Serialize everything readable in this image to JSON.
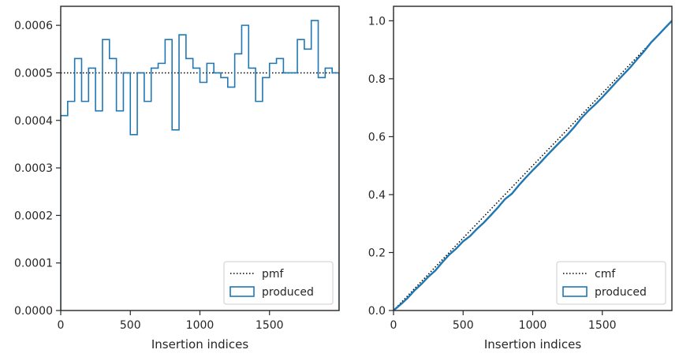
{
  "chart_data": [
    {
      "type": "histogram-step",
      "xlabel": "Insertion indices",
      "ylabel": "",
      "xlim": [
        0,
        2000
      ],
      "ylim": [
        0,
        0.00064
      ],
      "x_ticks": [
        0,
        500,
        1000,
        1500
      ],
      "x_tick_labels": [
        "0",
        "500",
        "1000",
        "1500"
      ],
      "y_ticks": [
        0,
        0.0001,
        0.0002,
        0.0003,
        0.0004,
        0.0005,
        0.0006
      ],
      "y_tick_labels": [
        "0.0000",
        "0.0001",
        "0.0002",
        "0.0003",
        "0.0004",
        "0.0005",
        "0.0006"
      ],
      "grid": false,
      "legend_position": "lower right",
      "legend_entries": [
        "pmf",
        "produced"
      ],
      "bin_edges": [
        0,
        50,
        100,
        150,
        200,
        250,
        300,
        350,
        400,
        450,
        500,
        550,
        600,
        650,
        700,
        750,
        800,
        850,
        900,
        950,
        1000,
        1050,
        1100,
        1150,
        1200,
        1250,
        1300,
        1350,
        1400,
        1450,
        1500,
        1550,
        1600,
        1650,
        1700,
        1750,
        1800,
        1850,
        1900,
        1950,
        2000
      ],
      "series": [
        {
          "name": "pmf",
          "style": "dotted",
          "color": "#000000",
          "x": [
            0,
            2000
          ],
          "values": [
            0.0005,
            0.0005
          ]
        },
        {
          "name": "produced",
          "style": "step",
          "color": "#1f77b4",
          "values": [
            0.00041,
            0.00044,
            0.00053,
            0.00044,
            0.00051,
            0.00042,
            0.00057,
            0.00053,
            0.00042,
            0.0005,
            0.00037,
            0.0005,
            0.00044,
            0.00051,
            0.00052,
            0.00057,
            0.00038,
            0.00058,
            0.00053,
            0.00051,
            0.00048,
            0.00052,
            0.0005,
            0.00049,
            0.00047,
            0.00054,
            0.0006,
            0.00051,
            0.00044,
            0.00049,
            0.00052,
            0.00053,
            0.0005,
            0.0005,
            0.00057,
            0.00055,
            0.00061,
            0.00049,
            0.00051,
            0.0005
          ]
        }
      ]
    },
    {
      "type": "line",
      "xlabel": "Insertion indices",
      "ylabel": "",
      "xlim": [
        0,
        2000
      ],
      "ylim": [
        0,
        1.05
      ],
      "x_ticks": [
        0,
        500,
        1000,
        1500
      ],
      "x_tick_labels": [
        "0",
        "500",
        "1000",
        "1500"
      ],
      "y_ticks": [
        0,
        0.2,
        0.4,
        0.6,
        0.8,
        1.0
      ],
      "y_tick_labels": [
        "0.0",
        "0.2",
        "0.4",
        "0.6",
        "0.8",
        "1.0"
      ],
      "grid": false,
      "legend_position": "lower right",
      "legend_entries": [
        "cmf",
        "produced"
      ],
      "series": [
        {
          "name": "cmf",
          "style": "dotted",
          "color": "#000000",
          "x": [
            0,
            2000
          ],
          "values": [
            0,
            1.0
          ]
        },
        {
          "name": "produced",
          "style": "step",
          "color": "#1f77b4",
          "x_from_bins_of_chart": 0
        }
      ]
    }
  ]
}
